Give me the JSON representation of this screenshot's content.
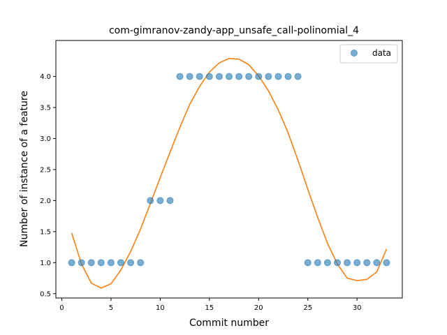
{
  "chart_data": {
    "type": "scatter",
    "title": "com-gimranov-zandy-app_unsafe_call-polinomial_4",
    "xlabel": "Commit number",
    "ylabel": "Number of instance of a feature",
    "xlim": [
      -0.6,
      34.6
    ],
    "ylim": [
      0.43,
      4.58
    ],
    "xticks": [
      0,
      5,
      10,
      15,
      20,
      25,
      30
    ],
    "yticks": [
      0.5,
      1.0,
      1.5,
      2.0,
      2.5,
      3.0,
      3.5,
      4.0
    ],
    "ytick_labels": [
      "0.5",
      "1.0",
      "1.5",
      "2.0",
      "2.5",
      "3.0",
      "3.5",
      "4.0"
    ],
    "legend": {
      "position": "top-right",
      "entries": [
        "data"
      ]
    },
    "colors": {
      "data": "#1f77b4",
      "fit": "#ff7f0e"
    },
    "series": [
      {
        "name": "data",
        "kind": "scatter",
        "x": [
          1,
          2,
          3,
          4,
          5,
          6,
          7,
          8,
          9,
          10,
          11,
          12,
          13,
          14,
          15,
          16,
          17,
          18,
          19,
          20,
          21,
          22,
          23,
          24,
          25,
          26,
          27,
          28,
          29,
          30,
          31,
          32,
          33
        ],
        "y": [
          1,
          1,
          1,
          1,
          1,
          1,
          1,
          1,
          2,
          2,
          2,
          4,
          4,
          4,
          4,
          4,
          4,
          4,
          4,
          4,
          4,
          4,
          4,
          4,
          1,
          1,
          1,
          1,
          1,
          1,
          1,
          1,
          1
        ]
      },
      {
        "kind": "line",
        "x": [
          1,
          2,
          3,
          4,
          5,
          6,
          7,
          8,
          9,
          10,
          11,
          12,
          13,
          14,
          15,
          16,
          17,
          18,
          19,
          20,
          21,
          22,
          23,
          24,
          25,
          26,
          27,
          28,
          29,
          30,
          31,
          32,
          33
        ],
        "y": [
          1.48,
          0.98,
          0.67,
          0.59,
          0.66,
          0.88,
          1.18,
          1.54,
          1.95,
          2.37,
          2.78,
          3.18,
          3.55,
          3.84,
          4.07,
          4.22,
          4.29,
          4.28,
          4.19,
          4.01,
          3.77,
          3.46,
          3.09,
          2.65,
          2.18,
          1.73,
          1.31,
          0.98,
          0.75,
          0.71,
          0.73,
          0.85,
          1.22
        ]
      }
    ]
  }
}
